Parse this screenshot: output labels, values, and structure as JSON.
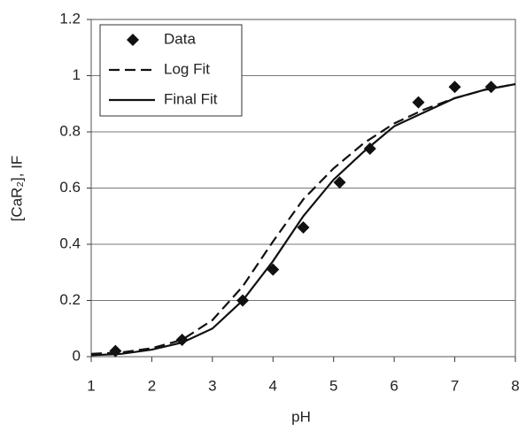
{
  "chart_data": {
    "type": "line",
    "x_label": "pH",
    "y_label": "[CaR₂], IF",
    "xlim": [
      1,
      8
    ],
    "xticks": [
      1,
      2,
      3,
      4,
      5,
      6,
      7,
      8
    ],
    "ylim": [
      0,
      1.2
    ],
    "yticks": [
      0,
      0.2,
      0.4,
      0.6,
      0.8,
      1,
      1.2
    ],
    "grid": true,
    "legend": "top-left",
    "series": [
      {
        "name": "Data",
        "style": "marker",
        "color": "#111111",
        "x": [
          1.4,
          2.5,
          3.5,
          4,
          4.5,
          5.1,
          5.6,
          6.4,
          7,
          7.6
        ],
        "values": [
          0.02,
          0.06,
          0.2,
          0.31,
          0.46,
          0.62,
          0.74,
          0.905,
          0.96,
          0.96
        ]
      },
      {
        "name": "Log Fit",
        "style": "dashed",
        "color": "#111111",
        "x": [
          1,
          1.5,
          2,
          2.5,
          3,
          3.5,
          4,
          4.5,
          5,
          5.5,
          6,
          6.5,
          7,
          7.5,
          8
        ],
        "values": [
          0.01,
          0.015,
          0.03,
          0.06,
          0.13,
          0.25,
          0.41,
          0.56,
          0.67,
          0.76,
          0.83,
          0.88,
          0.92,
          0.95,
          0.97
        ]
      },
      {
        "name": "Final Fit",
        "style": "solid",
        "color": "#111111",
        "x": [
          1,
          1.5,
          2,
          2.5,
          3,
          3.5,
          4,
          4.5,
          5,
          5.5,
          6,
          6.5,
          7,
          7.5,
          8
        ],
        "values": [
          0.005,
          0.01,
          0.025,
          0.05,
          0.1,
          0.2,
          0.34,
          0.5,
          0.63,
          0.73,
          0.82,
          0.87,
          0.92,
          0.95,
          0.97
        ]
      }
    ]
  }
}
